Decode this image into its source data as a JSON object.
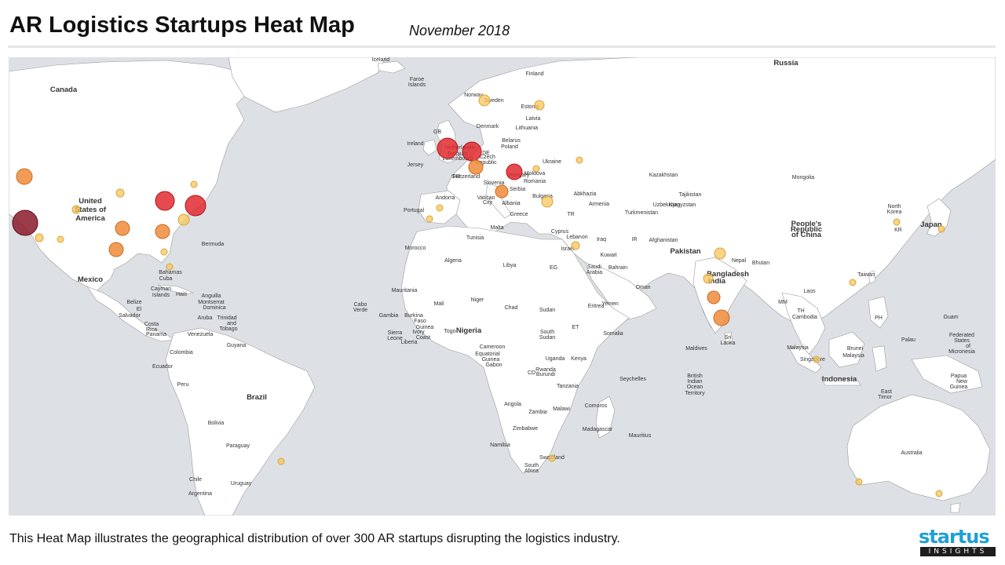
{
  "header": {
    "title": "AR Logistics Startups Heat Map",
    "subtitle": "November 2018"
  },
  "footer": {
    "caption": "This Heat Map illustrates the geographical distribution of over 300 AR startups disrupting the logistics industry."
  },
  "logo": {
    "top": "startus",
    "bottom": "INSIGHTS"
  },
  "colors": {
    "land": "#ffffff",
    "sea": "#dde1e5",
    "border": "#9a9a9a",
    "heat_low": "#f7c65a",
    "heat_mid": "#f08c3a",
    "heat_high": "#e02a2f",
    "heat_max": "#8b1a2b"
  },
  "map_labels": [
    {
      "text": "Canada",
      "cls": "c"
    },
    {
      "text": "United",
      "cls": "c"
    },
    {
      "text": "States of",
      "cls": "c"
    },
    {
      "text": "America",
      "cls": "c"
    },
    {
      "text": "Mexico",
      "cls": "c"
    },
    {
      "text": "Bermuda",
      "cls": "o"
    },
    {
      "text": "Bahamas",
      "cls": "o"
    },
    {
      "text": "Cuba",
      "cls": "o"
    },
    {
      "text": "Cayman",
      "cls": "o"
    },
    {
      "text": "Islands",
      "cls": "o"
    },
    {
      "text": "Haiti",
      "cls": "o"
    },
    {
      "text": "Anguilla",
      "cls": "o"
    },
    {
      "text": "Montserrat",
      "cls": "o"
    },
    {
      "text": "Dominica",
      "cls": "o"
    },
    {
      "text": "Belize",
      "cls": "o"
    },
    {
      "text": "El",
      "cls": "o"
    },
    {
      "text": "Salvador",
      "cls": "o"
    },
    {
      "text": "Costa",
      "cls": "o"
    },
    {
      "text": "Rica",
      "cls": "o"
    },
    {
      "text": "Panama",
      "cls": "o"
    },
    {
      "text": "Aruba",
      "cls": "o"
    },
    {
      "text": "Trinidad",
      "cls": "o"
    },
    {
      "text": "and",
      "cls": "o"
    },
    {
      "text": "Tobago",
      "cls": "o"
    },
    {
      "text": "Venezuela",
      "cls": "o"
    },
    {
      "text": "Guyana",
      "cls": "o"
    },
    {
      "text": "Colombia",
      "cls": "o"
    },
    {
      "text": "Ecuador",
      "cls": "o"
    },
    {
      "text": "Peru",
      "cls": "o"
    },
    {
      "text": "Brazil",
      "cls": "c"
    },
    {
      "text": "Bolivia",
      "cls": "o"
    },
    {
      "text": "Paraguay",
      "cls": "o"
    },
    {
      "text": "Chile",
      "cls": "o"
    },
    {
      "text": "Uruguay",
      "cls": "o"
    },
    {
      "text": "Argentina",
      "cls": "o"
    },
    {
      "text": "Iceland",
      "cls": "o"
    },
    {
      "text": "Faroe",
      "cls": "o"
    },
    {
      "text": "Islands",
      "cls": "o"
    },
    {
      "text": "Norway",
      "cls": "o"
    },
    {
      "text": "Sweden",
      "cls": "o"
    },
    {
      "text": "Finland",
      "cls": "o"
    },
    {
      "text": "Estonia",
      "cls": "o"
    },
    {
      "text": "Latvia",
      "cls": "o"
    },
    {
      "text": "Lithuania",
      "cls": "o"
    },
    {
      "text": "Denmark",
      "cls": "o"
    },
    {
      "text": "GB",
      "cls": "o"
    },
    {
      "text": "Ireland",
      "cls": "o"
    },
    {
      "text": "Netherlands",
      "cls": "o"
    },
    {
      "text": "Belgium",
      "cls": "o"
    },
    {
      "text": "Luxembourg",
      "cls": "o"
    },
    {
      "text": "DE",
      "cls": "o"
    },
    {
      "text": "Poland",
      "cls": "o"
    },
    {
      "text": "Belarus",
      "cls": "o"
    },
    {
      "text": "Jersey",
      "cls": "o"
    },
    {
      "text": "FR",
      "cls": "o"
    },
    {
      "text": "Czech",
      "cls": "o"
    },
    {
      "text": "Republic",
      "cls": "o"
    },
    {
      "text": "Ukraine",
      "cls": "o"
    },
    {
      "text": "Switzerland",
      "cls": "o"
    },
    {
      "text": "Slovenia",
      "cls": "o"
    },
    {
      "text": "Hungary",
      "cls": "o"
    },
    {
      "text": "Moldova",
      "cls": "o"
    },
    {
      "text": "Romania",
      "cls": "o"
    },
    {
      "text": "Serbia",
      "cls": "o"
    },
    {
      "text": "Bulgaria",
      "cls": "o"
    },
    {
      "text": "Andorra",
      "cls": "o"
    },
    {
      "text": "Vatican",
      "cls": "o"
    },
    {
      "text": "City",
      "cls": "o"
    },
    {
      "text": "Albania",
      "cls": "o"
    },
    {
      "text": "Greece",
      "cls": "o"
    },
    {
      "text": "Portugal",
      "cls": "o"
    },
    {
      "text": "Malta",
      "cls": "o"
    },
    {
      "text": "TR",
      "cls": "o"
    },
    {
      "text": "Abkhazia",
      "cls": "o"
    },
    {
      "text": "Armenia",
      "cls": "o"
    },
    {
      "text": "Cyprus",
      "cls": "o"
    },
    {
      "text": "Lebanon",
      "cls": "o"
    },
    {
      "text": "Israel",
      "cls": "o"
    },
    {
      "text": "Iraq",
      "cls": "o"
    },
    {
      "text": "IR",
      "cls": "o"
    },
    {
      "text": "Kuwait",
      "cls": "o"
    },
    {
      "text": "Saudi",
      "cls": "o"
    },
    {
      "text": "Arabia",
      "cls": "o"
    },
    {
      "text": "Bahrain",
      "cls": "o"
    },
    {
      "text": "Oman",
      "cls": "o"
    },
    {
      "text": "Yemen",
      "cls": "o"
    },
    {
      "text": "Russia",
      "cls": "c"
    },
    {
      "text": "Kazakhstan",
      "cls": "o"
    },
    {
      "text": "Mongolia",
      "cls": "o"
    },
    {
      "text": "Uzbekistan",
      "cls": "o"
    },
    {
      "text": "Kyrgyzstan",
      "cls": "o"
    },
    {
      "text": "Turkmenistan",
      "cls": "o"
    },
    {
      "text": "Tajikistan",
      "cls": "o"
    },
    {
      "text": "Afghanistan",
      "cls": "o"
    },
    {
      "text": "Pakistan",
      "cls": "c"
    },
    {
      "text": "Nepal",
      "cls": "o"
    },
    {
      "text": "Bhutan",
      "cls": "o"
    },
    {
      "text": "India",
      "cls": "c"
    },
    {
      "text": "Bangladesh",
      "cls": "c"
    },
    {
      "text": "Sri",
      "cls": "o"
    },
    {
      "text": "Lanka",
      "cls": "o"
    },
    {
      "text": "Maldives",
      "cls": "o"
    },
    {
      "text": "People's",
      "cls": "c"
    },
    {
      "text": "Republic",
      "cls": "c"
    },
    {
      "text": "of China",
      "cls": "c"
    },
    {
      "text": "North",
      "cls": "o"
    },
    {
      "text": "Korea",
      "cls": "o"
    },
    {
      "text": "KR",
      "cls": "o"
    },
    {
      "text": "Japan",
      "cls": "c"
    },
    {
      "text": "Taiwan",
      "cls": "o"
    },
    {
      "text": "MM",
      "cls": "o"
    },
    {
      "text": "Laos",
      "cls": "o"
    },
    {
      "text": "TH",
      "cls": "o"
    },
    {
      "text": "Cambodia",
      "cls": "o"
    },
    {
      "text": "PH",
      "cls": "o"
    },
    {
      "text": "Guam",
      "cls": "o"
    },
    {
      "text": "Palau",
      "cls": "o"
    },
    {
      "text": "Federated",
      "cls": "o"
    },
    {
      "text": "States",
      "cls": "o"
    },
    {
      "text": "of",
      "cls": "o"
    },
    {
      "text": "Micronesia",
      "cls": "o"
    },
    {
      "text": "Malaysia",
      "cls": "o"
    },
    {
      "text": "Brunei",
      "cls": "o"
    },
    {
      "text": "Malaysia",
      "cls": "o"
    },
    {
      "text": "Singapore",
      "cls": "o"
    },
    {
      "text": "Indonesia",
      "cls": "c"
    },
    {
      "text": "Papua",
      "cls": "o"
    },
    {
      "text": "New",
      "cls": "o"
    },
    {
      "text": "Guinea",
      "cls": "o"
    },
    {
      "text": "East",
      "cls": "o"
    },
    {
      "text": "Timor",
      "cls": "o"
    },
    {
      "text": "Australia",
      "cls": "o"
    },
    {
      "text": "Cabo",
      "cls": "o"
    },
    {
      "text": "Verde",
      "cls": "o"
    },
    {
      "text": "Morocco",
      "cls": "o"
    },
    {
      "text": "Tunisia",
      "cls": "o"
    },
    {
      "text": "Algeria",
      "cls": "o"
    },
    {
      "text": "Libya",
      "cls": "o"
    },
    {
      "text": "EG",
      "cls": "o"
    },
    {
      "text": "Mauritania",
      "cls": "o"
    },
    {
      "text": "Mali",
      "cls": "o"
    },
    {
      "text": "Niger",
      "cls": "o"
    },
    {
      "text": "Chad",
      "cls": "o"
    },
    {
      "text": "Sudan",
      "cls": "o"
    },
    {
      "text": "Eritrea",
      "cls": "o"
    },
    {
      "text": "Gambia",
      "cls": "o"
    },
    {
      "text": "Burkina",
      "cls": "o"
    },
    {
      "text": "Faso",
      "cls": "o"
    },
    {
      "text": "Guinea",
      "cls": "o"
    },
    {
      "text": "Sierra",
      "cls": "o"
    },
    {
      "text": "Leone",
      "cls": "o"
    },
    {
      "text": "Ivory",
      "cls": "o"
    },
    {
      "text": "Coast",
      "cls": "o"
    },
    {
      "text": "Liberia",
      "cls": "o"
    },
    {
      "text": "Togo",
      "cls": "o"
    },
    {
      "text": "Nigeria",
      "cls": "c"
    },
    {
      "text": "ET",
      "cls": "o"
    },
    {
      "text": "Somalia",
      "cls": "o"
    },
    {
      "text": "South",
      "cls": "o"
    },
    {
      "text": "Sudan",
      "cls": "o"
    },
    {
      "text": "Cameroon",
      "cls": "o"
    },
    {
      "text": "Equatorial",
      "cls": "o"
    },
    {
      "text": "Guinea",
      "cls": "o"
    },
    {
      "text": "Gabon",
      "cls": "o"
    },
    {
      "text": "Uganda",
      "cls": "o"
    },
    {
      "text": "Kenya",
      "cls": "o"
    },
    {
      "text": "CD",
      "cls": "o"
    },
    {
      "text": "Rwanda",
      "cls": "o"
    },
    {
      "text": "Burundi",
      "cls": "o"
    },
    {
      "text": "Tanzania",
      "cls": "o"
    },
    {
      "text": "Seychelles",
      "cls": "o"
    },
    {
      "text": "Angola",
      "cls": "o"
    },
    {
      "text": "Zambia",
      "cls": "o"
    },
    {
      "text": "Malawi",
      "cls": "o"
    },
    {
      "text": "Comoros",
      "cls": "o"
    },
    {
      "text": "Zimbabwe",
      "cls": "o"
    },
    {
      "text": "Madagascar",
      "cls": "o"
    },
    {
      "text": "Mauritius",
      "cls": "o"
    },
    {
      "text": "Namibia",
      "cls": "o"
    },
    {
      "text": "Swaziland",
      "cls": "o"
    },
    {
      "text": "South",
      "cls": "o"
    },
    {
      "text": "Africa",
      "cls": "o"
    },
    {
      "text": "British",
      "cls": "o"
    },
    {
      "text": "Indian",
      "cls": "o"
    },
    {
      "text": "Ocean",
      "cls": "o"
    },
    {
      "text": "Territory",
      "cls": "o"
    }
  ],
  "hotspots": [
    {
      "level": "max",
      "r": 16
    },
    {
      "level": "high",
      "r": 13
    },
    {
      "level": "high",
      "r": 13
    },
    {
      "level": "high",
      "r": 12
    },
    {
      "level": "high",
      "r": 12
    },
    {
      "level": "high",
      "r": 10
    },
    {
      "level": "mid",
      "r": 10
    },
    {
      "level": "mid",
      "r": 9
    },
    {
      "level": "mid",
      "r": 9
    },
    {
      "level": "mid",
      "r": 9
    },
    {
      "level": "mid",
      "r": 9
    },
    {
      "level": "mid",
      "r": 8
    },
    {
      "level": "mid",
      "r": 8
    },
    {
      "level": "mid",
      "r": 10
    },
    {
      "level": "low",
      "r": 7
    },
    {
      "level": "low",
      "r": 7
    },
    {
      "level": "low",
      "r": 7
    },
    {
      "level": "low",
      "r": 7
    },
    {
      "level": "low",
      "r": 6
    },
    {
      "level": "low",
      "r": 6
    },
    {
      "level": "low",
      "r": 5
    },
    {
      "level": "low",
      "r": 5
    },
    {
      "level": "low",
      "r": 5
    },
    {
      "level": "low",
      "r": 5
    },
    {
      "level": "low",
      "r": 4
    },
    {
      "level": "low",
      "r": 4
    },
    {
      "level": "low",
      "r": 4
    },
    {
      "level": "low",
      "r": 4
    },
    {
      "level": "low",
      "r": 4
    },
    {
      "level": "low",
      "r": 4
    },
    {
      "level": "low",
      "r": 4
    },
    {
      "level": "low",
      "r": 4
    },
    {
      "level": "low",
      "r": 4
    },
    {
      "level": "low",
      "r": 4
    },
    {
      "level": "low",
      "r": 4
    },
    {
      "level": "low",
      "r": 4
    },
    {
      "level": "low",
      "r": 4
    },
    {
      "level": "low",
      "r": 4
    },
    {
      "level": "low",
      "r": 4
    },
    {
      "level": "low",
      "r": 4
    }
  ]
}
